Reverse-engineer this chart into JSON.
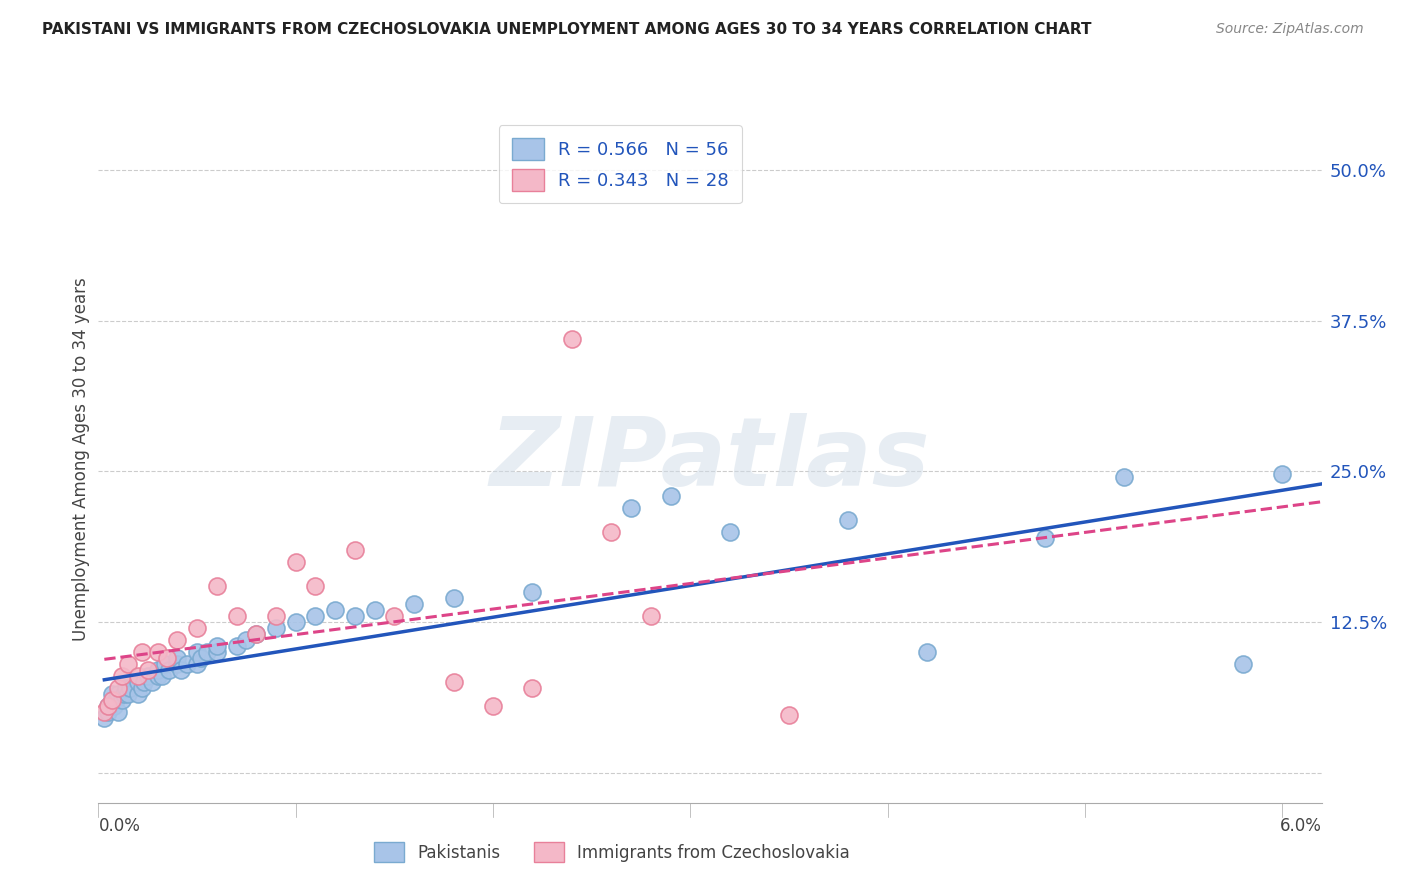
{
  "title": "PAKISTANI VS IMMIGRANTS FROM CZECHOSLOVAKIA UNEMPLOYMENT AMONG AGES 30 TO 34 YEARS CORRELATION CHART",
  "source": "Source: ZipAtlas.com",
  "ylabel": "Unemployment Among Ages 30 to 34 years",
  "ytick_values": [
    0.0,
    0.125,
    0.25,
    0.375,
    0.5
  ],
  "xlim": [
    0.0,
    0.062
  ],
  "ylim": [
    -0.025,
    0.545
  ],
  "blue_scatter_color": "#a8c4e8",
  "blue_edge_color": "#7aaad0",
  "pink_scatter_color": "#f4b8c8",
  "pink_edge_color": "#e8809a",
  "trend_blue_color": "#2255bb",
  "trend_pink_color": "#dd4488",
  "trend_pink_linestyle": "--",
  "background_color": "#ffffff",
  "grid_color": "#cccccc",
  "watermark_text": "ZIPatlas",
  "watermark_color": "#d0dce8",
  "legend1_label1": "R = 0.566   N = 56",
  "legend1_label2": "R = 0.343   N = 28",
  "legend2_label1": "Pakistanis",
  "legend2_label2": "Immigrants from Czechoslovakia",
  "right_tick_color": "#2255bb",
  "pak_x": [
    0.0003,
    0.0005,
    0.0005,
    0.0007,
    0.0007,
    0.0008,
    0.0009,
    0.001,
    0.001,
    0.0012,
    0.0013,
    0.0014,
    0.0015,
    0.0016,
    0.002,
    0.002,
    0.0022,
    0.0023,
    0.0025,
    0.0027,
    0.003,
    0.003,
    0.0032,
    0.0034,
    0.0036,
    0.004,
    0.004,
    0.0042,
    0.0045,
    0.005,
    0.005,
    0.0052,
    0.0055,
    0.006,
    0.006,
    0.007,
    0.0075,
    0.008,
    0.009,
    0.01,
    0.011,
    0.012,
    0.013,
    0.014,
    0.016,
    0.018,
    0.022,
    0.027,
    0.029,
    0.032,
    0.038,
    0.042,
    0.048,
    0.052,
    0.058,
    0.06
  ],
  "pak_y": [
    0.045,
    0.05,
    0.055,
    0.06,
    0.065,
    0.055,
    0.06,
    0.05,
    0.065,
    0.06,
    0.065,
    0.07,
    0.065,
    0.07,
    0.065,
    0.075,
    0.07,
    0.075,
    0.08,
    0.075,
    0.08,
    0.085,
    0.08,
    0.09,
    0.085,
    0.09,
    0.095,
    0.085,
    0.09,
    0.09,
    0.1,
    0.095,
    0.1,
    0.1,
    0.105,
    0.105,
    0.11,
    0.115,
    0.12,
    0.125,
    0.13,
    0.135,
    0.13,
    0.135,
    0.14,
    0.145,
    0.15,
    0.22,
    0.23,
    0.2,
    0.21,
    0.1,
    0.195,
    0.245,
    0.09,
    0.248
  ],
  "cz_x": [
    0.0003,
    0.0005,
    0.0007,
    0.001,
    0.0012,
    0.0015,
    0.002,
    0.0022,
    0.0025,
    0.003,
    0.0035,
    0.004,
    0.005,
    0.006,
    0.007,
    0.008,
    0.009,
    0.01,
    0.011,
    0.013,
    0.015,
    0.018,
    0.02,
    0.022,
    0.024,
    0.026,
    0.028,
    0.035
  ],
  "cz_y": [
    0.05,
    0.055,
    0.06,
    0.07,
    0.08,
    0.09,
    0.08,
    0.1,
    0.085,
    0.1,
    0.095,
    0.11,
    0.12,
    0.155,
    0.13,
    0.115,
    0.13,
    0.175,
    0.155,
    0.185,
    0.13,
    0.075,
    0.055,
    0.07,
    0.36,
    0.2,
    0.13,
    0.048
  ]
}
